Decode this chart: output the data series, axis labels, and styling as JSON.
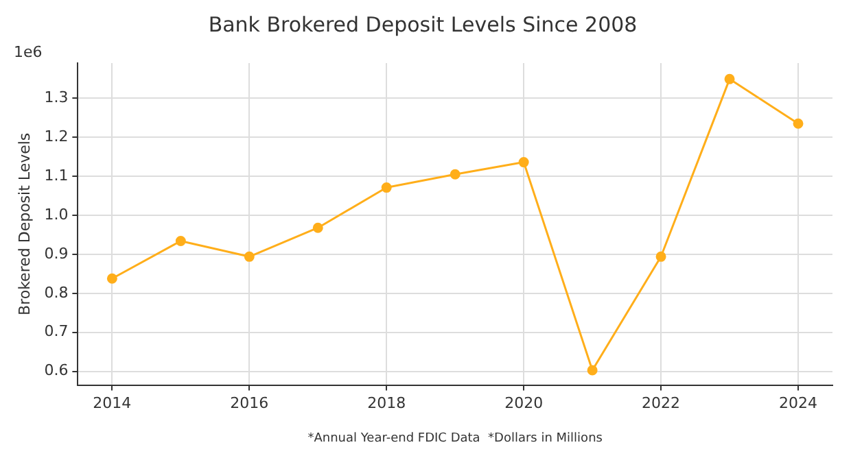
{
  "chart_data": {
    "type": "line",
    "title": "Bank Brokered Deposit Levels Since 2008",
    "ylabel": "Brokered Deposit Levels",
    "annotations": [
      "1e6",
      "*Annual Year-end FDIC Data  *Dollars in Millions"
    ],
    "x": [
      2014,
      2015,
      2016,
      2017,
      2018,
      2019,
      2020,
      2021,
      2022,
      2023,
      2024
    ],
    "series": [
      {
        "color": "#ffae1a",
        "values": [
          0.838,
          0.934,
          0.894,
          0.968,
          1.071,
          1.105,
          1.136,
          0.603,
          0.894,
          1.349,
          1.235
        ]
      }
    ],
    "xlim": [
      2013.5,
      2024.5
    ],
    "xticks": [
      2014,
      2016,
      2018,
      2020,
      2022,
      2024
    ],
    "ylim": [
      0.565,
      1.39
    ],
    "yticks": [
      {
        "value": 0.6,
        "label": "0.6"
      },
      {
        "value": 0.7,
        "label": "0.7"
      },
      {
        "value": 0.8,
        "label": "0.8"
      },
      {
        "value": 0.9,
        "label": "0.9"
      },
      {
        "value": 1.0,
        "label": "1.0"
      },
      {
        "value": 1.1,
        "label": "1.1"
      },
      {
        "value": 1.2,
        "label": "1.2"
      },
      {
        "value": 1.3,
        "label": "1.3"
      }
    ],
    "grid": true,
    "legend": false,
    "marker": "circle",
    "line_style": "solid"
  }
}
